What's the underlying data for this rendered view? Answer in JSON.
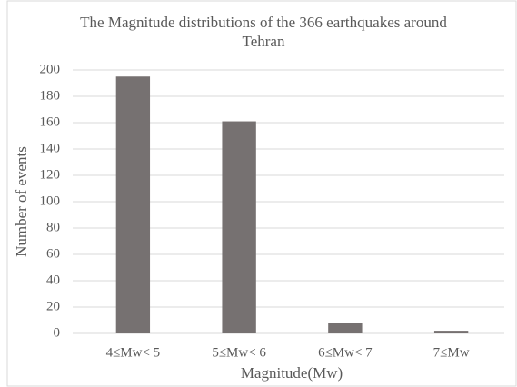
{
  "chart_data": {
    "type": "bar",
    "title": "The Magnitude distributions of the 366 earthquakes around Tehran",
    "x_label": "Magnitude(Mw)",
    "y_label": "Number of events",
    "categories": [
      "4≤Mw< 5",
      "5≤Mw< 6",
      "6≤Mw< 7",
      "7≤Mw"
    ],
    "values": [
      195,
      161,
      8,
      2
    ],
    "color": "#767171",
    "ylim": [
      0,
      200
    ],
    "yticks": [
      0,
      20,
      40,
      60,
      80,
      100,
      120,
      140,
      160,
      180,
      200
    ],
    "grid": true
  }
}
